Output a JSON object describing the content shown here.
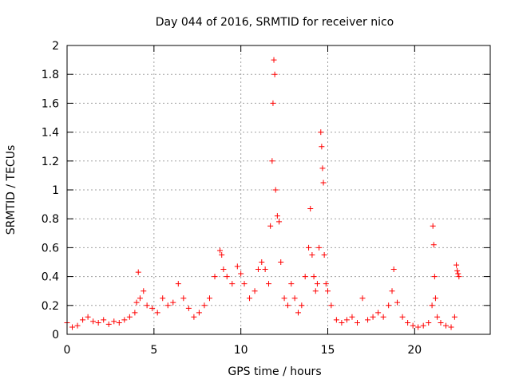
{
  "chart_data": {
    "type": "scatter",
    "title": "Day 044 of 2016, SRMTID for receiver nico",
    "xlabel": "GPS time / hours",
    "ylabel": "SRMTID / TECUs",
    "xlim": [
      0,
      24.35
    ],
    "ylim": [
      0,
      2
    ],
    "xticks": [
      0,
      5,
      10,
      15,
      20
    ],
    "xtick_labels": [
      "0",
      "5",
      "10",
      "15",
      "20"
    ],
    "yticks": [
      0,
      0.2,
      0.4,
      0.6,
      0.8,
      1,
      1.2,
      1.4,
      1.6,
      1.8,
      2
    ],
    "ytick_labels": [
      "0",
      "0.2",
      "0.4",
      "0.6",
      "0.8",
      "1",
      "1.2",
      "1.4",
      "1.6",
      "1.8",
      "2"
    ],
    "grid": true,
    "marker": "+",
    "color": "#ff0000",
    "series": [
      {
        "name": "SRMTID",
        "x": [
          0.0,
          0.3,
          0.6,
          0.9,
          1.2,
          1.5,
          1.8,
          2.1,
          2.4,
          2.7,
          3.0,
          3.3,
          3.6,
          3.9,
          4.0,
          4.1,
          4.2,
          4.4,
          4.6,
          4.9,
          5.2,
          5.5,
          5.8,
          6.1,
          6.4,
          6.7,
          7.0,
          7.3,
          7.6,
          7.9,
          8.2,
          8.5,
          8.8,
          8.9,
          9.0,
          9.2,
          9.5,
          9.8,
          10.0,
          10.2,
          10.5,
          10.8,
          11.0,
          11.2,
          11.4,
          11.6,
          11.7,
          11.8,
          11.85,
          11.9,
          11.95,
          12.0,
          12.1,
          12.2,
          12.3,
          12.5,
          12.7,
          12.9,
          13.1,
          13.3,
          13.5,
          13.7,
          13.9,
          14.0,
          14.1,
          14.2,
          14.3,
          14.4,
          14.5,
          14.6,
          14.65,
          14.7,
          14.75,
          14.8,
          14.9,
          15.0,
          15.2,
          15.5,
          15.8,
          16.1,
          16.4,
          16.7,
          17.0,
          17.3,
          17.6,
          17.9,
          18.2,
          18.5,
          18.7,
          18.8,
          19.0,
          19.3,
          19.6,
          19.9,
          20.2,
          20.5,
          20.8,
          21.0,
          21.05,
          21.1,
          21.15,
          21.2,
          21.3,
          21.5,
          21.8,
          22.1,
          22.3,
          22.4,
          22.45,
          22.5,
          22.55
        ],
        "y": [
          0.08,
          0.05,
          0.06,
          0.1,
          0.12,
          0.09,
          0.08,
          0.1,
          0.07,
          0.09,
          0.08,
          0.1,
          0.12,
          0.15,
          0.22,
          0.43,
          0.25,
          0.3,
          0.2,
          0.18,
          0.15,
          0.25,
          0.2,
          0.22,
          0.35,
          0.25,
          0.18,
          0.12,
          0.15,
          0.2,
          0.25,
          0.4,
          0.58,
          0.55,
          0.45,
          0.4,
          0.35,
          0.47,
          0.42,
          0.35,
          0.25,
          0.3,
          0.45,
          0.5,
          0.45,
          0.35,
          0.75,
          1.2,
          1.6,
          1.9,
          1.8,
          1.0,
          0.82,
          0.78,
          0.5,
          0.25,
          0.2,
          0.35,
          0.25,
          0.15,
          0.2,
          0.4,
          0.6,
          0.87,
          0.55,
          0.4,
          0.3,
          0.35,
          0.6,
          1.4,
          1.3,
          1.15,
          1.05,
          0.55,
          0.35,
          0.3,
          0.2,
          0.1,
          0.08,
          0.1,
          0.12,
          0.08,
          0.25,
          0.1,
          0.12,
          0.15,
          0.12,
          0.2,
          0.3,
          0.45,
          0.22,
          0.12,
          0.08,
          0.06,
          0.05,
          0.06,
          0.08,
          0.2,
          0.75,
          0.62,
          0.4,
          0.25,
          0.12,
          0.08,
          0.06,
          0.05,
          0.12,
          0.48,
          0.44,
          0.42,
          0.4
        ]
      }
    ]
  }
}
